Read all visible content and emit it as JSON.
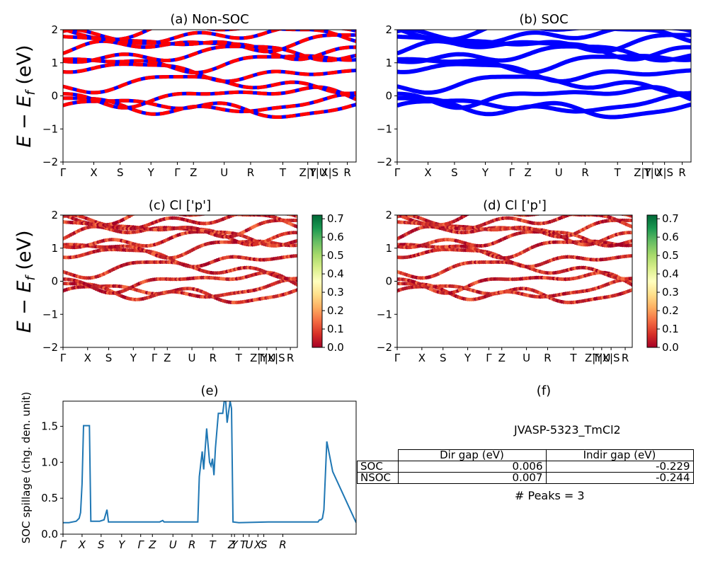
{
  "panel_labels": {
    "a": "(a) Non-SOC",
    "b": "(b) SOC",
    "c": "(c)  Cl ['p']",
    "d": "(d) Cl ['p']",
    "e": "(e)",
    "f": "(f)"
  },
  "band_ylabel": "E − E_f (eV)",
  "spillage_ylabel": "SOC spillage (chg. den. unit)",
  "info": {
    "title": "JVASP-5323_TmCl2",
    "col_dir": "Dir gap (eV)",
    "col_indir": "Indir gap (eV)",
    "rows": [
      {
        "label": "SOC",
        "dir": "0.006",
        "indir": "-0.229"
      },
      {
        "label": "NSOC",
        "dir": "0.007",
        "indir": "-0.244"
      }
    ],
    "peaks": "# Peaks = 3"
  },
  "colorbar": {
    "ticks": [
      "0.0",
      "0.1",
      "0.2",
      "0.3",
      "0.4",
      "0.5",
      "0.6",
      "0.7"
    ],
    "colormap": "RdYlGn",
    "range": [
      0,
      0.72
    ]
  },
  "colors": {
    "nonsoc_up": "#ff0000",
    "nonsoc_down": "#0000ff",
    "soc": "#0000ff",
    "spillage": "#1f77b4"
  },
  "chart_data": [
    {
      "id": "a",
      "type": "line",
      "title": "(a) Non-SOC",
      "ylabel": "E − E_f (eV)",
      "ylim": [
        -2,
        2
      ],
      "yticks": [
        "−2",
        "−1",
        "0",
        "1",
        "2"
      ],
      "xticks": [
        "Γ",
        "X",
        "S",
        "Y",
        "Γ",
        "Z",
        "U",
        "R",
        "T",
        "Z|Y",
        "T|U",
        "X|S",
        "R"
      ],
      "xtick_pos": [
        0,
        0.105,
        0.195,
        0.3,
        0.39,
        0.445,
        0.55,
        0.64,
        0.75,
        0.835,
        0.87,
        0.91,
        0.97
      ],
      "bands_eV_at_Gamma": [
        -0.35,
        -0.3,
        0.0,
        0.35,
        0.75,
        1.05,
        1.25,
        1.45,
        1.65,
        1.85,
        1.95
      ]
    },
    {
      "id": "b",
      "type": "line",
      "title": "(b) SOC",
      "ylabel": "",
      "ylim": [
        -2,
        2
      ],
      "yticks": [
        "−2",
        "−1",
        "0",
        "1",
        "2"
      ],
      "xticks": [
        "Γ",
        "X",
        "S",
        "Y",
        "Γ",
        "Z",
        "U",
        "R",
        "T",
        "Z|Y",
        "T|U",
        "X|S",
        "R"
      ],
      "xtick_pos": [
        0,
        0.105,
        0.195,
        0.3,
        0.39,
        0.445,
        0.55,
        0.64,
        0.75,
        0.835,
        0.87,
        0.91,
        0.97
      ],
      "bands_eV_at_Gamma": [
        -0.35,
        -0.3,
        0.0,
        0.35,
        0.75,
        1.05,
        1.25,
        1.45,
        1.65,
        1.85,
        1.95
      ]
    },
    {
      "id": "c",
      "type": "scatter",
      "title": "(c)  Cl ['p']",
      "ylabel": "E − E_f (eV)",
      "ylim": [
        -2,
        2
      ],
      "yticks": [
        "−2",
        "−1",
        "0",
        "1",
        "2"
      ],
      "xticks": [
        "Γ",
        "X",
        "S",
        "Y",
        "Γ",
        "Z",
        "U",
        "R",
        "T",
        "Z|Y",
        "T|U",
        "X|S",
        "R"
      ],
      "xtick_pos": [
        0,
        0.105,
        0.195,
        0.3,
        0.39,
        0.445,
        0.55,
        0.64,
        0.75,
        0.835,
        0.87,
        0.91,
        0.97
      ],
      "color_value_range": [
        0,
        0.72
      ]
    },
    {
      "id": "d",
      "type": "scatter",
      "title": "(d) Cl ['p']",
      "ylabel": "",
      "ylim": [
        -2,
        2
      ],
      "yticks": [
        "−2",
        "−1",
        "0",
        "1",
        "2"
      ],
      "xticks": [
        "Γ",
        "X",
        "S",
        "Y",
        "Γ",
        "Z",
        "U",
        "R",
        "T",
        "Z|Y",
        "T|U",
        "X|S",
        "R"
      ],
      "xtick_pos": [
        0,
        0.105,
        0.195,
        0.3,
        0.39,
        0.445,
        0.55,
        0.64,
        0.75,
        0.835,
        0.87,
        0.91,
        0.97
      ],
      "color_value_range": [
        0,
        0.72
      ]
    },
    {
      "id": "e",
      "type": "line",
      "title": "(e)",
      "ylabel": "SOC spillage (chg. den. unit)",
      "ylim": [
        0,
        1.85
      ],
      "yticks": [
        0.0,
        0.5,
        1.0,
        1.5
      ],
      "ytick_labels": [
        "0.0",
        "0.5",
        "1.0",
        "1.5"
      ],
      "xticks": [
        "Γ",
        "X",
        "S",
        "Y",
        "Γ",
        "Z",
        "U",
        "R",
        "T",
        "Z",
        "Y",
        "T",
        "U",
        "X",
        "S",
        "R"
      ],
      "xtick_pos": [
        0,
        0.065,
        0.13,
        0.2,
        0.265,
        0.305,
        0.375,
        0.44,
        0.51,
        0.575,
        0.585,
        0.615,
        0.635,
        0.665,
        0.685,
        0.75
      ],
      "x": [
        0,
        0.02,
        0.045,
        0.055,
        0.06,
        0.065,
        0.07,
        0.08,
        0.09,
        0.095,
        0.125,
        0.14,
        0.15,
        0.155,
        0.16,
        0.18,
        0.25,
        0.33,
        0.34,
        0.345,
        0.36,
        0.45,
        0.46,
        0.465,
        0.475,
        0.48,
        0.49,
        0.5,
        0.505,
        0.51,
        0.515,
        0.52,
        0.53,
        0.545,
        0.55,
        0.555,
        0.56,
        0.57,
        0.575,
        0.58,
        0.6,
        0.7,
        0.8,
        0.85,
        0.87,
        0.875,
        0.88,
        0.885,
        0.89,
        0.9,
        0.92,
        1.0
      ],
      "values": [
        0.16,
        0.16,
        0.18,
        0.22,
        0.3,
        0.7,
        1.51,
        1.51,
        1.51,
        0.18,
        0.18,
        0.2,
        0.34,
        0.17,
        0.17,
        0.17,
        0.17,
        0.17,
        0.19,
        0.17,
        0.17,
        0.17,
        0.17,
        0.8,
        1.15,
        0.9,
        1.47,
        1.0,
        0.95,
        1.05,
        0.82,
        1.2,
        1.68,
        1.68,
        1.85,
        1.85,
        1.55,
        1.85,
        1.75,
        0.17,
        0.16,
        0.17,
        0.17,
        0.17,
        0.17,
        0.2,
        0.2,
        0.22,
        0.34,
        1.29,
        0.87,
        0.16
      ]
    }
  ]
}
